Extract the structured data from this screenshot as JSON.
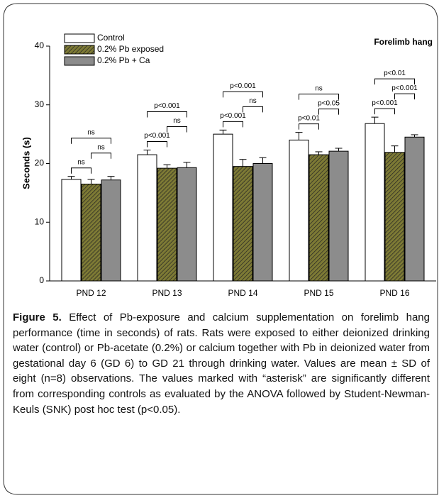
{
  "chart_data": {
    "type": "bar",
    "title": "Forelimb hang",
    "ylabel": "Seconds (s)",
    "categories": [
      "PND 12",
      "PND 13",
      "PND 14",
      "PND 15",
      "PND 16"
    ],
    "series": [
      {
        "name": "Control",
        "color": "#ffffff",
        "values": [
          17.3,
          21.5,
          25.0,
          24.0,
          26.8
        ],
        "errors": [
          0.5,
          0.8,
          0.7,
          1.3,
          1.1
        ]
      },
      {
        "name": "0.2% Pb exposed",
        "color": "#7d7a35",
        "hatch": true,
        "values": [
          16.5,
          19.2,
          19.5,
          21.5,
          21.9
        ],
        "errors": [
          0.8,
          0.6,
          1.2,
          0.5,
          1.1
        ]
      },
      {
        "name": "0.2% Pb + Ca",
        "color": "#8c8c8c",
        "values": [
          17.2,
          19.3,
          20.0,
          22.1,
          24.5
        ],
        "errors": [
          0.6,
          0.9,
          1.0,
          0.5,
          0.4
        ]
      }
    ],
    "significance": [
      [
        "ns",
        "ns",
        "ns"
      ],
      [
        "p<0.001",
        "ns",
        "p<0.001"
      ],
      [
        "p<0.001",
        "ns",
        "p<0.001"
      ],
      [
        "p<0.01",
        "p<0.05",
        "ns"
      ],
      [
        "p<0.001",
        "p<0.001",
        "p<0.01"
      ]
    ],
    "ylim": [
      0,
      40
    ],
    "yticks": [
      0,
      10,
      20,
      30,
      40
    ],
    "legend": "upper left"
  },
  "caption": {
    "label": "Figure 5.",
    "text": "Effect of Pb-exposure and calcium supplementation on forelimb hang performance (time in seconds) of rats. Rats were exposed to either deionized drinking water (control) or Pb-acetate (0.2%) or calcium together with Pb in deionized water from gestational day 6 (GD 6) to GD 21 through drinking water. Values are mean ± SD of eight (n=8) observations. The values marked with “asterisk” are significantly different from corresponding controls as evaluated by the ANOVA followed by Student-Newman- Keuls (SNK) post hoc test (p<0.05)."
  }
}
